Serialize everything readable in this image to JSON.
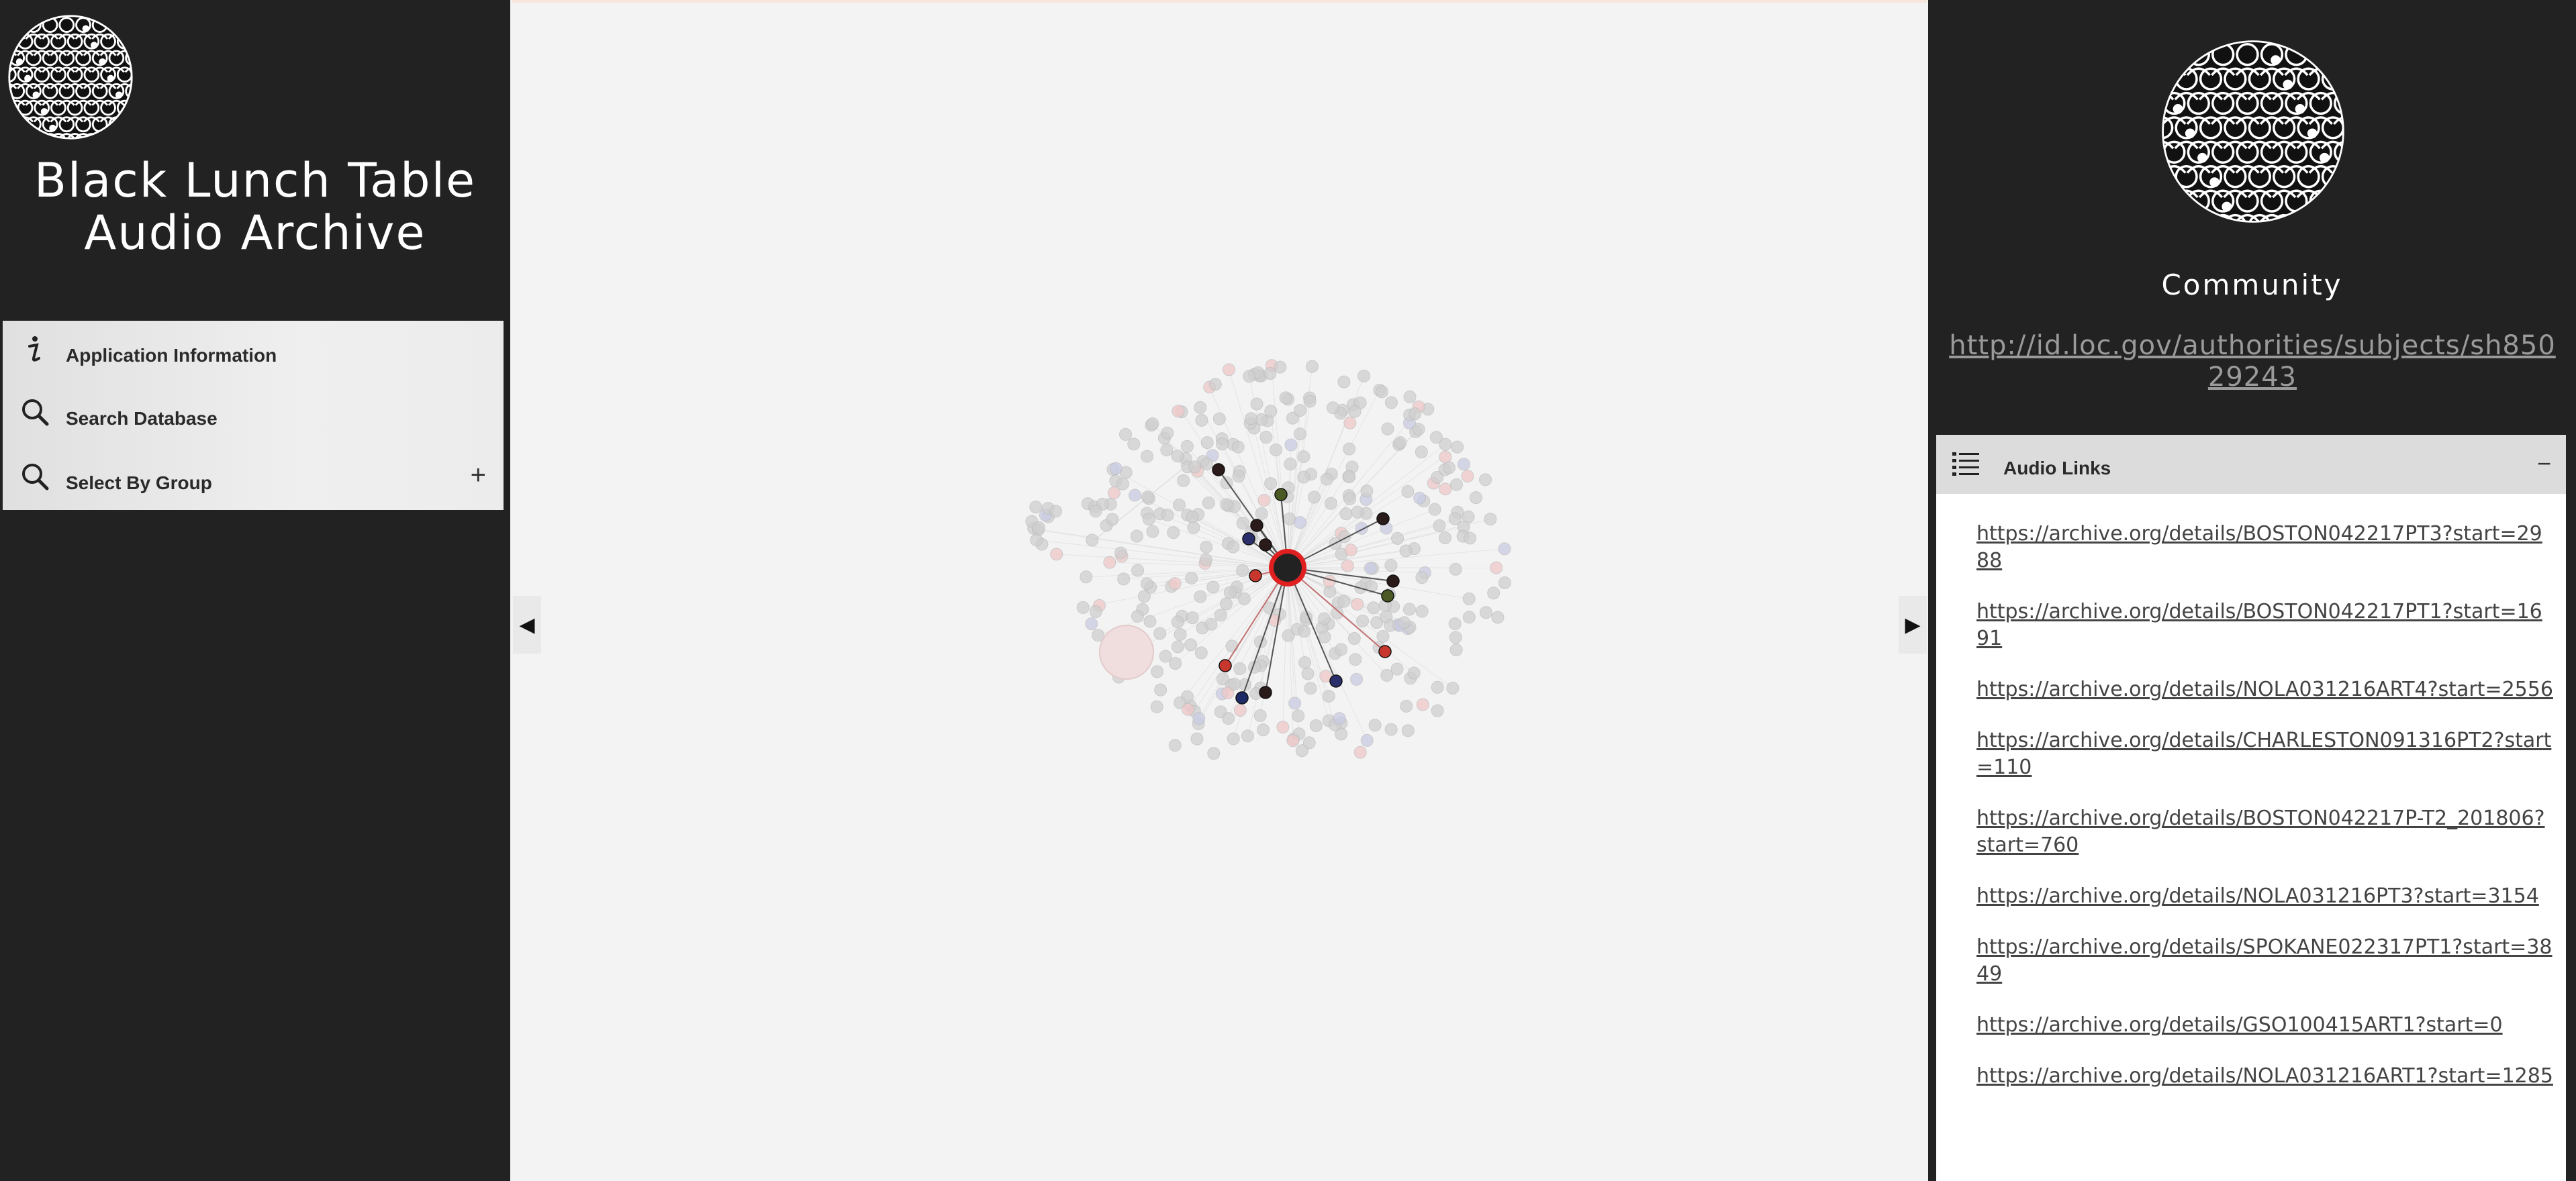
{
  "app": {
    "title_line1": "Black Lunch Table",
    "title_line2": "Audio Archive"
  },
  "menu": {
    "items": [
      {
        "label": "Application Information",
        "icon": "info-icon"
      },
      {
        "label": "Search Database",
        "icon": "search-icon"
      },
      {
        "label": "Select By Group",
        "icon": "search-icon",
        "expand": "+"
      }
    ]
  },
  "toggles": {
    "left": "◀",
    "right": "▶"
  },
  "entity": {
    "title": "Community",
    "uri": "http://id.loc.gov/authorities/subjects/sh85029243"
  },
  "audio_links": {
    "header": "Audio Links",
    "collapse": "−",
    "links": [
      "https://archive.org/details/BOSTON042217PT3?start=2988",
      "https://archive.org/details/BOSTON042217PT1?start=1691",
      "https://archive.org/details/NOLA031216ART4?start=2556",
      "https://archive.org/details/CHARLESTON091316PT2?start=110",
      "https://archive.org/details/BOSTON042217P-T2_201806?start=760",
      "https://archive.org/details/NOLA031216PT3?start=3154",
      "https://archive.org/details/SPOKANE022317PT1?start=3849",
      "https://archive.org/details/GSO100415ART1?start=0",
      "https://archive.org/details/NOLA031216ART1?start=1285"
    ]
  },
  "colors": {
    "sidebar_bg": "#222222",
    "graph_bg": "#f3f3f3",
    "center_node": "#222222",
    "center_ring": "#e02020",
    "node_red": "#c8372d",
    "node_navy": "#2a2f6b",
    "node_olive": "#4a5a22",
    "node_dark": "#2b1a1a",
    "faded_node": "#c8c8c8"
  }
}
